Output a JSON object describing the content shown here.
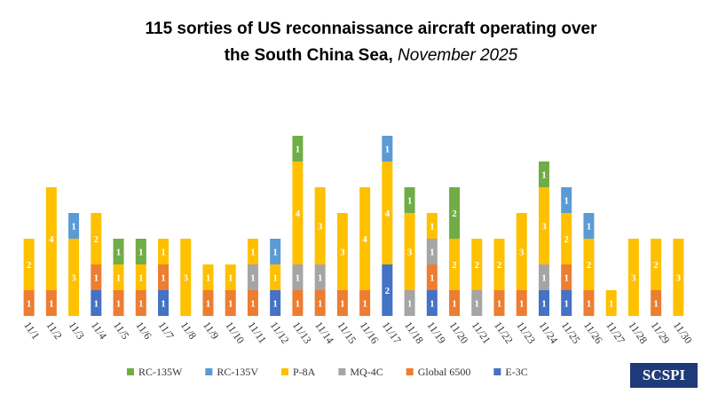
{
  "chart_data": {
    "type": "stacked_bar",
    "title": "115 sorties of US reconnaissance aircraft operating over the South China Sea,",
    "title_date": "November 2025",
    "logo": "SCSPI",
    "categories": [
      "11/1",
      "11/2",
      "11/3",
      "11/4",
      "11/5",
      "11/6",
      "11/7",
      "11/8",
      "11/9",
      "11/10",
      "11/11",
      "11/12",
      "11/13",
      "11/14",
      "11/15",
      "11/16",
      "11/17",
      "11/18",
      "11/19",
      "11/20",
      "11/21",
      "11/22",
      "11/23",
      "11/24",
      "11/25",
      "11/26",
      "11/27",
      "11/28",
      "11/29",
      "11/30"
    ],
    "series": [
      {
        "name": "E-3C",
        "color": "#4472c4",
        "values": [
          null,
          null,
          null,
          1,
          null,
          null,
          1,
          null,
          null,
          null,
          null,
          1,
          null,
          null,
          null,
          null,
          2,
          null,
          1,
          null,
          null,
          null,
          null,
          1,
          1,
          null,
          null,
          null,
          null,
          null
        ]
      },
      {
        "name": "Global 6500",
        "color": "#ed7d31",
        "values": [
          1,
          1,
          null,
          1,
          1,
          1,
          1,
          null,
          1,
          1,
          1,
          null,
          1,
          1,
          1,
          1,
          null,
          null,
          1,
          1,
          null,
          1,
          1,
          null,
          1,
          1,
          null,
          null,
          1,
          null
        ]
      },
      {
        "name": "MQ-4C",
        "color": "#a5a5a5",
        "values": [
          null,
          null,
          null,
          null,
          null,
          null,
          null,
          null,
          null,
          null,
          1,
          null,
          1,
          1,
          null,
          null,
          null,
          1,
          1,
          null,
          1,
          null,
          null,
          1,
          null,
          null,
          null,
          null,
          null,
          null
        ]
      },
      {
        "name": "P-8A",
        "color": "#ffc000",
        "values": [
          2,
          4,
          3,
          2,
          1,
          1,
          1,
          3,
          1,
          1,
          1,
          1,
          4,
          3,
          3,
          4,
          4,
          3,
          1,
          2,
          2,
          2,
          3,
          3,
          2,
          2,
          1,
          3,
          2,
          3
        ]
      },
      {
        "name": "RC-135V",
        "color": "#5b9bd5",
        "values": [
          null,
          null,
          1,
          null,
          null,
          null,
          null,
          null,
          null,
          null,
          null,
          1,
          null,
          null,
          null,
          null,
          1,
          null,
          null,
          null,
          null,
          null,
          null,
          null,
          1,
          1,
          null,
          null,
          null,
          null
        ]
      },
      {
        "name": "RC-135W",
        "color": "#70ad47",
        "values": [
          null,
          null,
          null,
          null,
          1,
          1,
          null,
          null,
          null,
          null,
          null,
          null,
          1,
          null,
          null,
          null,
          null,
          1,
          null,
          2,
          null,
          null,
          null,
          1,
          null,
          null,
          null,
          null,
          null,
          null
        ]
      }
    ],
    "legend_order": [
      "RC-135W",
      "RC-135V",
      "P-8A",
      "MQ-4C",
      "Global 6500",
      "E-3C"
    ]
  }
}
